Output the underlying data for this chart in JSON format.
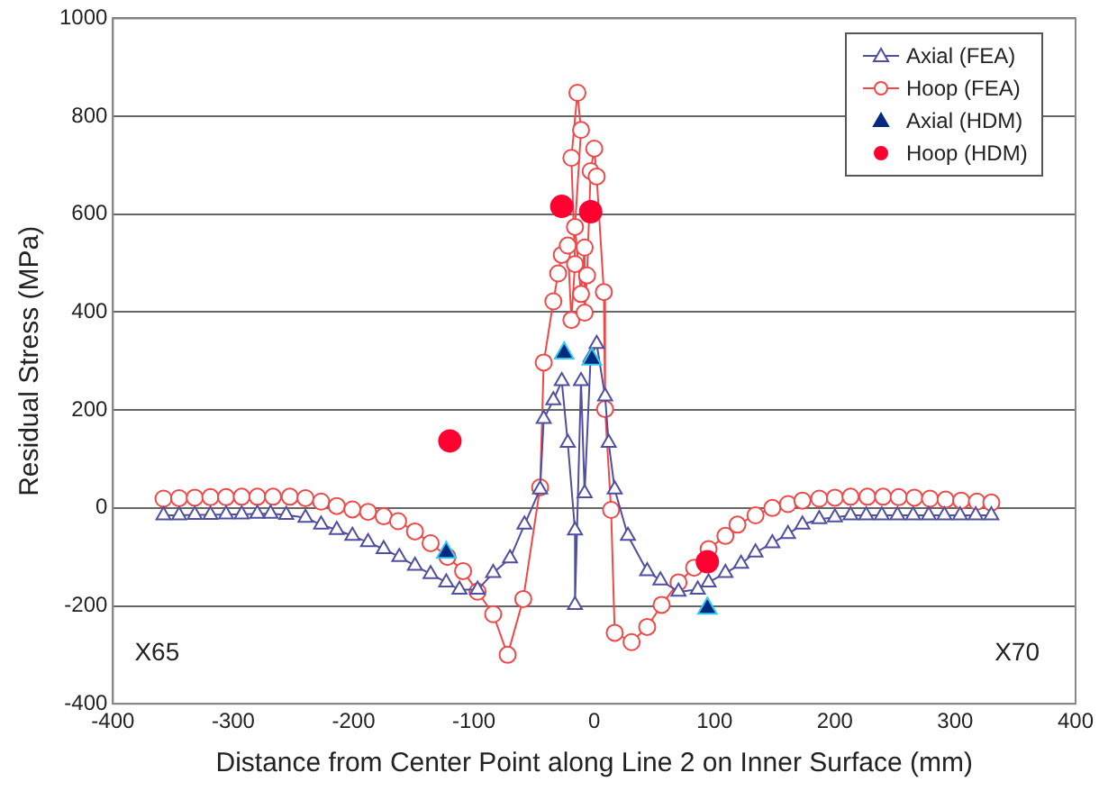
{
  "chart_data": {
    "type": "line",
    "xlabel": "Distance from Center Point along Line 2 on Inner Surface (mm)",
    "ylabel": "Residual Stress (MPa)",
    "xlim": [
      -400,
      400
    ],
    "xticks": [
      -400,
      -300,
      -200,
      -100,
      0,
      100,
      200,
      300,
      400
    ],
    "ylim": [
      -400,
      1000
    ],
    "yticks": [
      -400,
      -200,
      0,
      200,
      400,
      600,
      800,
      1000
    ],
    "grid": "y",
    "legend": "top right",
    "annotations": [
      "X65",
      "X70"
    ],
    "series": [
      {
        "name": "Axial (FEA)",
        "marker": "triangle",
        "color": "#4f4f9f",
        "x": [
          -358,
          -345,
          -332,
          -319,
          -306,
          -293,
          -280,
          -269,
          -256,
          -240,
          -227,
          -214,
          -201,
          -188,
          -175,
          -162,
          -149,
          -136,
          -123,
          -112,
          -97,
          -84,
          -70,
          -58,
          -45,
          -42,
          -34,
          -27,
          -22,
          -16,
          -16,
          -11,
          -8,
          -3,
          2,
          9,
          12,
          17,
          28,
          44,
          55,
          70,
          86,
          95,
          109,
          122,
          134,
          148,
          161,
          173,
          187,
          200,
          213,
          226,
          239,
          252,
          265,
          278,
          291,
          304,
          317,
          330
        ],
        "values": [
          -15,
          -15,
          -14,
          -14,
          -13,
          -13,
          -12,
          -12,
          -14,
          -20,
          -34,
          -45,
          -57,
          -70,
          -84,
          -100,
          -118,
          -135,
          -152,
          -167,
          -167,
          -133,
          -103,
          -34,
          38,
          182,
          220,
          259,
          133,
          -46,
          -198,
          259,
          30,
          308,
          335,
          228,
          133,
          38,
          -57,
          -129,
          -148,
          -171,
          -167,
          -152,
          -133,
          -114,
          -91,
          -72,
          -53,
          -34,
          -23,
          -19,
          -15,
          -15,
          -15,
          -15,
          -15,
          -15,
          -15,
          -15,
          -15,
          -15
        ]
      },
      {
        "name": "Hoop (FEA)",
        "marker": "circle",
        "color": "#f04848",
        "x": [
          -358,
          -345,
          -332,
          -319,
          -306,
          -293,
          -280,
          -267,
          -253,
          -240,
          -227,
          -214,
          -201,
          -188,
          -175,
          -163,
          -149,
          -136,
          -122,
          -109,
          -97,
          -84,
          -72,
          -59,
          -45,
          -42,
          -34,
          -30,
          -27,
          -22,
          -19,
          -16,
          -19,
          -14,
          -11,
          -16,
          -11,
          -8,
          -8,
          -6,
          -3,
          0,
          2,
          8,
          9,
          14,
          17,
          31,
          44,
          56,
          70,
          83,
          95,
          109,
          119,
          134,
          148,
          161,
          173,
          187,
          200,
          213,
          227,
          240,
          253,
          266,
          279,
          292,
          305,
          318,
          330
        ],
        "values": [
          19,
          20,
          21,
          22,
          22,
          23,
          23,
          23,
          23,
          20,
          13,
          4,
          -3,
          -8,
          -17,
          -27,
          -48,
          -72,
          -100,
          -129,
          -171,
          -217,
          -300,
          -186,
          42,
          297,
          422,
          479,
          517,
          536,
          384,
          498,
          715,
          848,
          772,
          574,
          437,
          532,
          399,
          475,
          688,
          734,
          677,
          441,
          202,
          -4,
          -255,
          -274,
          -243,
          -198,
          -152,
          -122,
          -84,
          -57,
          -34,
          -15,
          0,
          8,
          15,
          19,
          21,
          23,
          23,
          23,
          22,
          21,
          19,
          17,
          15,
          13,
          11
        ]
      },
      {
        "name": "Axial (HDM)",
        "type": "scatter",
        "marker": "triangle",
        "color": "#002a80",
        "x": [
          -123,
          -25,
          -2,
          94
        ],
        "values": [
          -91,
          316,
          304,
          -205
        ]
      },
      {
        "name": "Hoop (HDM)",
        "type": "scatter",
        "marker": "circle",
        "color": "#ff0030",
        "x": [
          -120,
          -27,
          -3,
          94
        ],
        "values": [
          137,
          616,
          605,
          -110
        ]
      }
    ]
  }
}
